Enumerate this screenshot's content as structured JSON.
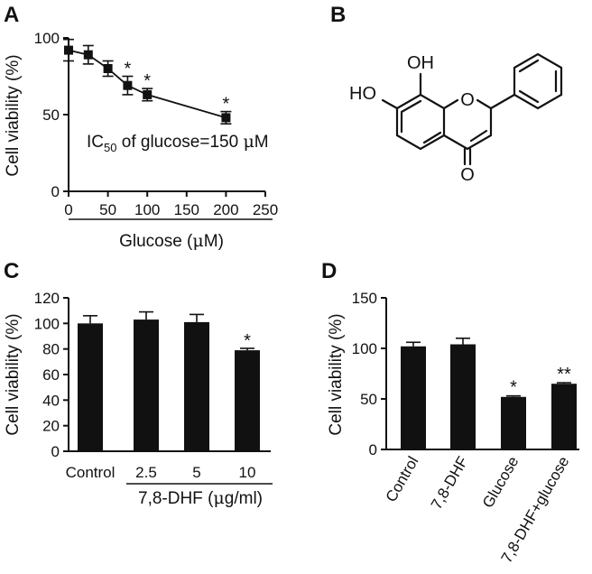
{
  "panels": {
    "A": {
      "label": "A",
      "chart_data": {
        "type": "line",
        "x": [
          0,
          25,
          50,
          75,
          100,
          200
        ],
        "y": [
          92,
          89,
          80,
          69,
          63,
          48
        ],
        "yerr": [
          7,
          6,
          5,
          6,
          4,
          4
        ],
        "significant": [
          false,
          false,
          false,
          true,
          true,
          true
        ],
        "star_label": "*",
        "xlim": [
          0,
          250
        ],
        "ylim": [
          0,
          100
        ],
        "xticks": [
          0,
          50,
          100,
          150,
          200,
          250
        ],
        "yticks": [
          0,
          50,
          100
        ],
        "xlabel_prefix": "Glucose (",
        "xlabel_unit": "μ",
        "xlabel_suffix": "M)",
        "ylabel": "Cell viability (%)",
        "annotation": {
          "prefix": "IC",
          "sub": "50",
          "middle": " of glucose=150 ",
          "unit": "μ",
          "suffix": "M"
        }
      }
    },
    "B": {
      "label": "B",
      "structure": {
        "oh_top": "OH",
        "ho_left": "HO",
        "ring_o": "O",
        "carbonyl_o": "O"
      }
    },
    "C": {
      "label": "C",
      "chart_data": {
        "type": "bar",
        "categories": [
          "Control",
          "2.5",
          "5",
          "10"
        ],
        "values": [
          100,
          103,
          101,
          79
        ],
        "errors": [
          6,
          6,
          6,
          1.5
        ],
        "significance": [
          "",
          "",
          "",
          "*"
        ],
        "ylim": [
          0,
          120
        ],
        "yticks": [
          0,
          20,
          40,
          60,
          80,
          100,
          120
        ],
        "ylabel": "Cell viability (%)",
        "group_label_prefix": "7,8-DHF (",
        "group_label_unit": "μ",
        "group_label_suffix": "g/ml)"
      }
    },
    "D": {
      "label": "D",
      "chart_data": {
        "type": "bar",
        "categories": [
          "Control",
          "7,8-DHF",
          "Glucose",
          "7,8-DHF+glucose"
        ],
        "values": [
          102,
          104,
          52,
          65
        ],
        "errors": [
          4,
          6,
          1,
          1
        ],
        "significance": [
          "",
          "",
          "*",
          "**"
        ],
        "ylim": [
          0,
          150
        ],
        "yticks": [
          0,
          50,
          100,
          150
        ],
        "ylabel": "Cell viability (%)"
      }
    }
  }
}
